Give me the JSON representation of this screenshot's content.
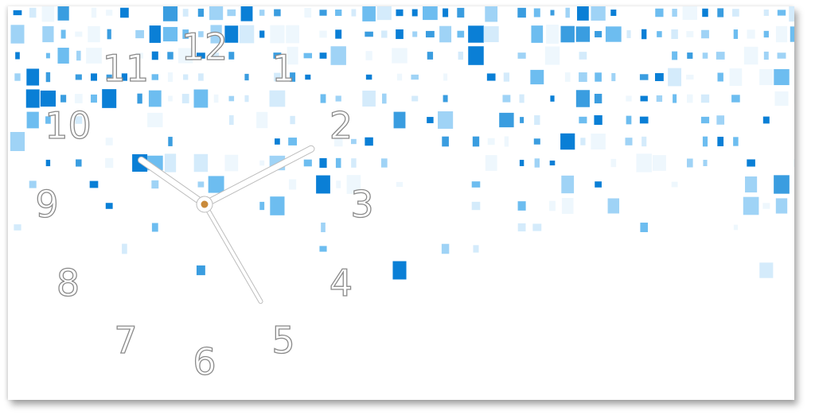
{
  "product": "wall-clock",
  "numerals": [
    "12",
    "1",
    "2",
    "3",
    "4",
    "5",
    "6",
    "7",
    "8",
    "9",
    "10",
    "11"
  ],
  "time_shown": {
    "hour": 10,
    "minute": 10,
    "second": 25
  },
  "colors": {
    "squares": [
      "#0a7fd6",
      "#3a9de0",
      "#6dbdf0",
      "#9fd3f6",
      "#d4ebfb",
      "#eef7fd"
    ],
    "numeral_outline": "#8a8a8a",
    "hand_outline": "#bdbdbd",
    "center_cap": "#c98a3a",
    "background": "#ffffff"
  }
}
